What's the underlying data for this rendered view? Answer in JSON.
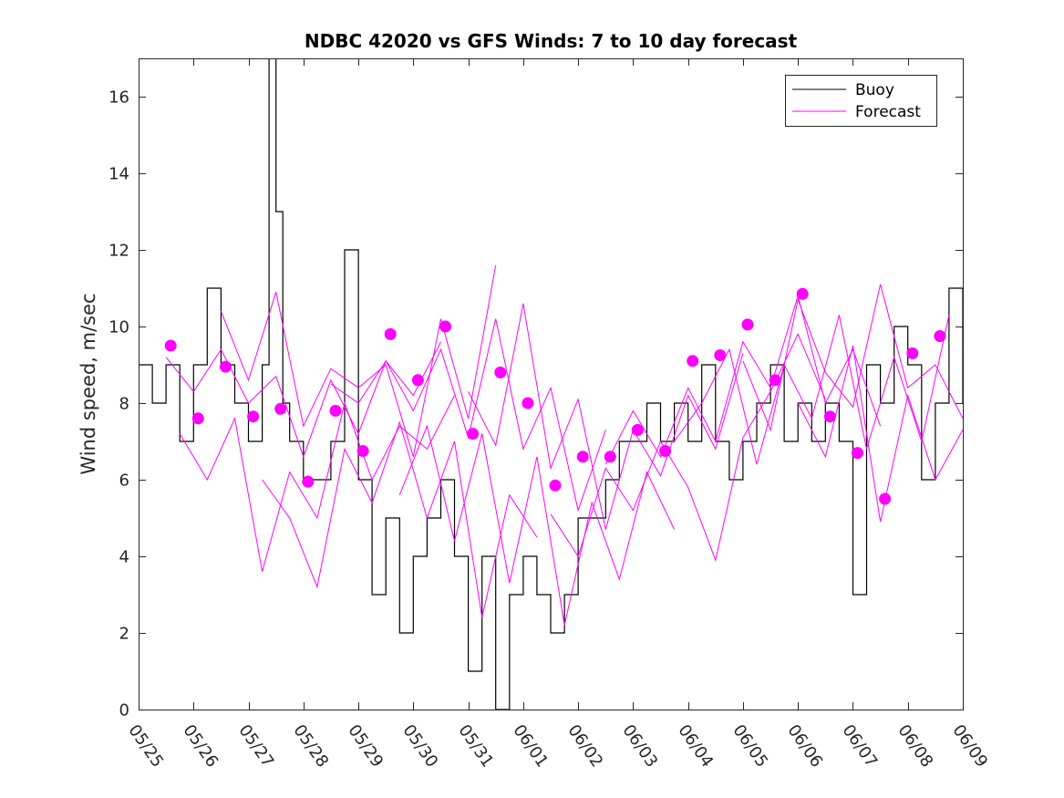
{
  "chart_data": {
    "type": "line",
    "title": "NDBC 42020 vs GFS Winds: 7 to 10 day forecast",
    "xlabel": "",
    "ylabel": "Wind speed, m/sec",
    "xlim": [
      "05/25",
      "06/09"
    ],
    "ylim": [
      0,
      17
    ],
    "x_ticks": [
      "05/25",
      "05/26",
      "05/27",
      "05/28",
      "05/29",
      "05/30",
      "05/31",
      "06/01",
      "06/02",
      "06/03",
      "06/04",
      "06/05",
      "06/06",
      "06/07",
      "06/08",
      "06/09"
    ],
    "y_ticks": [
      0,
      2,
      4,
      6,
      8,
      10,
      12,
      14,
      16
    ],
    "grid": false,
    "legend": {
      "position": "top-right",
      "entries": [
        "Buoy",
        "Forecast"
      ]
    },
    "colors": {
      "buoy": "#000000",
      "forecast": "#ff00ff"
    },
    "series": [
      {
        "name": "Buoy",
        "style": "line",
        "x": [
          "05/25 00:00",
          "05/25 06:00",
          "05/25 12:00",
          "05/25 18:00",
          "05/26 00:00",
          "05/26 06:00",
          "05/26 12:00",
          "05/26 18:00",
          "05/27 00:00",
          "05/27 06:00",
          "05/27 09:00",
          "05/27 12:00",
          "05/27 15:00",
          "05/27 18:00",
          "05/28 00:00",
          "05/28 06:00",
          "05/28 12:00",
          "05/28 18:00",
          "05/29 00:00",
          "05/29 06:00",
          "05/29 12:00",
          "05/29 18:00",
          "05/30 00:00",
          "05/30 06:00",
          "05/30 12:00",
          "05/30 18:00",
          "05/31 00:00",
          "05/31 06:00",
          "05/31 12:00",
          "05/31 18:00",
          "06/01 00:00",
          "06/01 06:00",
          "06/01 12:00",
          "06/01 18:00",
          "06/02 00:00",
          "06/02 06:00",
          "06/02 12:00",
          "06/02 18:00",
          "06/03 00:00",
          "06/03 06:00",
          "06/03 12:00",
          "06/03 18:00",
          "06/04 00:00",
          "06/04 06:00",
          "06/04 12:00",
          "06/04 18:00",
          "06/05 00:00",
          "06/05 06:00",
          "06/05 12:00",
          "06/05 18:00",
          "06/06 00:00",
          "06/06 06:00",
          "06/06 12:00",
          "06/06 18:00",
          "06/07 00:00",
          "06/07 06:00",
          "06/07 12:00",
          "06/07 18:00",
          "06/08 00:00",
          "06/08 06:00",
          "06/08 12:00",
          "06/08 18:00",
          "06/09 00:00"
        ],
        "y": [
          9,
          8,
          9,
          7,
          9,
          11,
          9,
          8,
          7,
          9,
          17,
          13,
          8,
          7,
          6,
          6,
          7,
          12,
          6,
          3,
          5,
          2,
          4,
          5,
          6,
          4,
          1,
          4,
          0,
          3,
          4,
          3,
          2,
          3,
          5,
          5,
          6,
          7,
          7,
          8,
          7,
          8,
          7,
          9,
          7,
          6,
          7,
          8,
          9,
          7,
          8,
          7,
          8,
          7,
          3,
          9,
          8,
          10,
          9,
          6,
          8,
          11,
          8
        ]
      },
      {
        "name": "Forecast",
        "style": "markers",
        "x": [
          "05/25 14:00",
          "05/26 02:00",
          "05/26 14:00",
          "05/27 02:00",
          "05/27 14:00",
          "05/28 02:00",
          "05/28 14:00",
          "05/29 02:00",
          "05/29 14:00",
          "05/30 02:00",
          "05/30 14:00",
          "05/31 02:00",
          "05/31 14:00",
          "06/01 02:00",
          "06/01 14:00",
          "06/02 02:00",
          "06/02 14:00",
          "06/03 02:00",
          "06/03 14:00",
          "06/04 02:00",
          "06/04 14:00",
          "06/05 02:00",
          "06/05 14:00",
          "06/06 02:00",
          "06/06 14:00",
          "06/07 02:00",
          "06/07 14:00",
          "06/08 02:00",
          "06/08 14:00"
        ],
        "y": [
          9.5,
          7.6,
          8.95,
          7.65,
          7.85,
          5.95,
          7.8,
          6.75,
          9.8,
          8.6,
          10.0,
          7.2,
          8.8,
          8.0,
          5.85,
          6.6,
          6.6,
          7.3,
          6.75,
          9.1,
          9.25,
          10.05,
          8.6,
          10.85,
          7.65,
          6.7,
          5.5,
          9.3,
          9.75
        ]
      },
      {
        "name": "",
        "style": "line",
        "x": [
          "05/25 12:00",
          "05/26 00:00",
          "05/26 12:00",
          "05/27 00:00",
          "05/27 12:00",
          "05/28 00:00",
          "05/28 12:00",
          "05/29 00:00",
          "05/29 12:00",
          "05/30 00:00",
          "05/30 12:00"
        ],
        "y": [
          9.2,
          8.3,
          9.4,
          8.0,
          8.7,
          6.6,
          8.6,
          7.2,
          9.1,
          8.2,
          9.6
        ]
      },
      {
        "name": "",
        "style": "line",
        "x": [
          "05/25 18:00",
          "05/26 06:00",
          "05/26 18:00",
          "05/27 06:00",
          "05/27 18:00",
          "05/28 06:00",
          "05/28 18:00",
          "05/29 06:00",
          "05/29 18:00",
          "05/30 06:00",
          "05/30 18:00"
        ],
        "y": [
          7.2,
          6.0,
          7.6,
          3.6,
          6.2,
          5.0,
          8.0,
          6.0,
          7.4,
          6.8,
          8.2
        ]
      },
      {
        "name": "",
        "style": "line",
        "x": [
          "05/26 12:00",
          "05/27 00:00",
          "05/27 12:00",
          "05/28 00:00",
          "05/28 12:00",
          "05/29 00:00",
          "05/29 12:00",
          "05/30 00:00",
          "05/30 12:00",
          "05/31 00:00",
          "05/31 12:00"
        ],
        "y": [
          10.4,
          8.6,
          10.9,
          7.4,
          8.9,
          8.4,
          9.0,
          6.6,
          10.2,
          7.6,
          11.6
        ]
      },
      {
        "name": "",
        "style": "line",
        "x": [
          "05/27 06:00",
          "05/27 18:00",
          "05/28 06:00",
          "05/28 18:00",
          "05/29 06:00",
          "05/29 18:00",
          "05/30 06:00",
          "05/30 18:00",
          "05/31 06:00",
          "05/31 18:00",
          "06/01 06:00"
        ],
        "y": [
          6.0,
          5.0,
          3.2,
          6.8,
          5.4,
          7.5,
          5.0,
          7.0,
          2.4,
          5.6,
          4.5
        ]
      },
      {
        "name": "",
        "style": "line",
        "x": [
          "05/28 12:00",
          "05/29 00:00",
          "05/29 12:00",
          "05/30 00:00",
          "05/30 12:00",
          "05/31 00:00",
          "05/31 12:00",
          "06/01 00:00",
          "06/01 12:00",
          "06/02 00:00",
          "06/02 12:00"
        ],
        "y": [
          8.5,
          8.0,
          9.1,
          7.8,
          9.4,
          7.1,
          10.2,
          6.8,
          8.4,
          5.2,
          7.3
        ]
      },
      {
        "name": "",
        "style": "line",
        "x": [
          "05/29 18:00",
          "05/30 06:00",
          "05/30 18:00",
          "05/31 06:00",
          "05/31 18:00",
          "06/01 06:00",
          "06/01 18:00",
          "06/02 06:00",
          "06/02 18:00",
          "06/03 06:00",
          "06/03 18:00"
        ],
        "y": [
          5.6,
          7.4,
          4.4,
          7.2,
          3.3,
          6.6,
          2.2,
          5.4,
          3.4,
          6.2,
          4.7
        ]
      },
      {
        "name": "",
        "style": "line",
        "x": [
          "05/31 00:00",
          "05/31 12:00",
          "06/01 00:00",
          "06/01 12:00",
          "06/02 00:00",
          "06/02 12:00",
          "06/03 00:00",
          "06/03 12:00",
          "06/04 00:00",
          "06/04 12:00",
          "06/05 00:00"
        ],
        "y": [
          8.3,
          6.9,
          10.6,
          6.3,
          8.1,
          4.7,
          7.3,
          6.1,
          8.2,
          6.8,
          9.3
        ]
      },
      {
        "name": "",
        "style": "line",
        "x": [
          "06/01 12:00",
          "06/02 00:00",
          "06/02 12:00",
          "06/03 00:00",
          "06/03 12:00",
          "06/04 00:00",
          "06/04 12:00",
          "06/05 00:00",
          "06/05 12:00",
          "06/06 00:00",
          "06/06 12:00"
        ],
        "y": [
          5.1,
          4.0,
          6.3,
          5.2,
          7.0,
          5.8,
          3.9,
          7.1,
          8.3,
          9.8,
          8.1
        ]
      },
      {
        "name": "",
        "style": "line",
        "x": [
          "06/02 12:00",
          "06/03 00:00",
          "06/03 12:00",
          "06/04 00:00",
          "06/04 12:00",
          "06/05 00:00",
          "06/05 12:00",
          "06/06 00:00",
          "06/06 12:00",
          "06/07 00:00",
          "06/07 12:00"
        ],
        "y": [
          6.4,
          7.8,
          6.6,
          8.4,
          7.0,
          9.6,
          8.4,
          10.8,
          8.0,
          9.4,
          7.4
        ]
      },
      {
        "name": "",
        "style": "line",
        "x": [
          "06/03 18:00",
          "06/04 06:00",
          "06/04 18:00",
          "06/05 06:00",
          "06/05 18:00",
          "06/06 06:00",
          "06/06 18:00",
          "06/07 06:00",
          "06/07 18:00",
          "06/08 06:00",
          "06/08 18:00"
        ],
        "y": [
          7.0,
          8.0,
          9.4,
          6.4,
          9.0,
          7.6,
          10.3,
          6.8,
          9.2,
          7.0,
          10.3
        ]
      },
      {
        "name": "",
        "style": "line",
        "x": [
          "06/05 00:00",
          "06/05 12:00",
          "06/06 00:00",
          "06/06 12:00",
          "06/07 00:00",
          "06/07 12:00",
          "06/08 00:00",
          "06/08 12:00",
          "06/09 00:00"
        ],
        "y": [
          9.1,
          7.3,
          10.7,
          8.8,
          7.9,
          11.1,
          8.4,
          9.0,
          7.6
        ]
      },
      {
        "name": "",
        "style": "line",
        "x": [
          "06/06 00:00",
          "06/06 12:00",
          "06/07 00:00",
          "06/07 12:00",
          "06/08 00:00",
          "06/08 12:00",
          "06/09 00:00"
        ],
        "y": [
          8.0,
          6.6,
          9.5,
          4.9,
          8.2,
          6.0,
          7.3
        ]
      }
    ]
  }
}
